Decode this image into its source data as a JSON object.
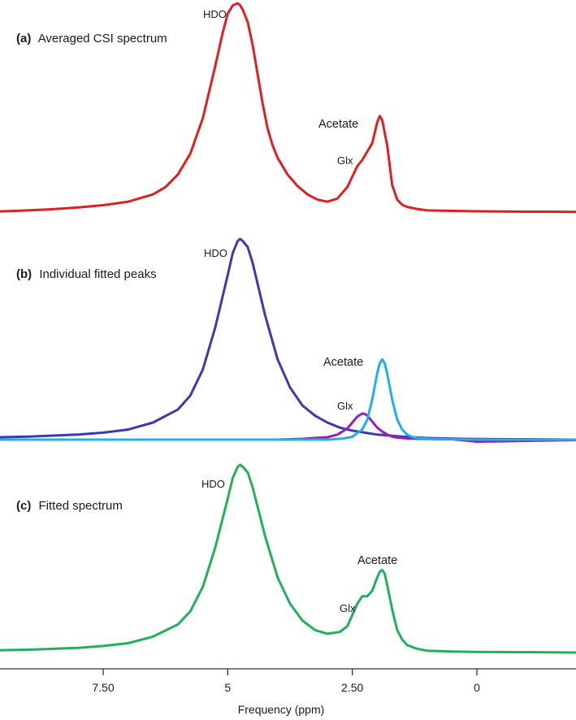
{
  "chart_data": [
    {
      "type": "line",
      "panel": "a",
      "title_letter": "(a)",
      "title_text": "Averaged CSI spectrum",
      "xlim": [
        10.0,
        -2.5
      ],
      "x_reversed": true,
      "color": "#e02020",
      "series": [
        {
          "x": [
            10.0,
            9.5,
            9.0,
            8.5,
            8.0,
            7.5,
            7.0,
            6.5,
            6.25,
            6.0,
            5.75,
            5.5,
            5.25,
            5.1,
            5.0,
            4.9,
            4.8,
            4.75,
            4.7,
            4.6,
            4.5,
            4.4,
            4.3,
            4.2,
            4.1,
            4.0,
            3.8,
            3.6,
            3.4,
            3.2,
            3.0,
            2.8,
            2.6,
            2.4,
            2.3,
            2.2,
            2.1,
            2.0,
            1.95,
            1.9,
            1.8,
            1.7,
            1.6,
            1.5,
            1.4,
            1.2,
            1.0,
            0.5,
            0.0,
            -0.5,
            -1.0,
            -1.5,
            -2.0,
            -2.5
          ],
          "y": [
            0.0,
            0.004,
            0.008,
            0.014,
            0.022,
            0.033,
            0.05,
            0.085,
            0.12,
            0.18,
            0.28,
            0.45,
            0.7,
            0.86,
            0.95,
            0.99,
            1.0,
            0.99,
            0.97,
            0.91,
            0.8,
            0.66,
            0.52,
            0.4,
            0.32,
            0.26,
            0.18,
            0.125,
            0.085,
            0.06,
            0.05,
            0.065,
            0.12,
            0.22,
            0.25,
            0.29,
            0.33,
            0.43,
            0.46,
            0.44,
            0.32,
            0.13,
            0.06,
            0.035,
            0.025,
            0.015,
            0.008,
            0.006,
            0.004,
            0.003,
            0.002,
            0.002,
            0.001,
            0.0
          ]
        }
      ],
      "annotations": [
        {
          "text": "HDO",
          "x": 5.8,
          "y": 0.97
        },
        {
          "text": "Acetate",
          "x": 2.25,
          "y": 0.46
        },
        {
          "text": "Glx",
          "x": 2.6,
          "y": 0.27
        }
      ]
    },
    {
      "type": "line",
      "panel": "b",
      "title_letter": "(b)",
      "title_text": "Individual fitted peaks",
      "xlim": [
        10.0,
        -2.5
      ],
      "x_reversed": true,
      "series": [
        {
          "color": "#3b3bb0",
          "x": [
            10.0,
            9.0,
            8.0,
            7.5,
            7.0,
            6.5,
            6.0,
            5.75,
            5.5,
            5.25,
            5.0,
            4.9,
            4.8,
            4.75,
            4.7,
            4.6,
            4.5,
            4.25,
            4.0,
            3.75,
            3.5,
            3.25,
            3.0,
            2.75,
            2.5,
            2.25,
            2.0,
            1.5,
            1.0,
            0.5,
            0.0,
            -1.0,
            -2.0,
            -2.5
          ],
          "y": [
            0.01,
            0.015,
            0.025,
            0.035,
            0.05,
            0.085,
            0.15,
            0.22,
            0.35,
            0.56,
            0.82,
            0.93,
            0.99,
            1.0,
            0.99,
            0.96,
            0.88,
            0.62,
            0.4,
            0.26,
            0.17,
            0.12,
            0.085,
            0.06,
            0.045,
            0.035,
            0.025,
            0.015,
            0.008,
            0.005,
            0.003,
            0.002,
            0.0,
            0.0
          ]
        },
        {
          "color": "#9a1fb5",
          "x": [
            10.0,
            4.0,
            3.5,
            3.0,
            2.8,
            2.6,
            2.5,
            2.4,
            2.3,
            2.25,
            2.2,
            2.1,
            2.0,
            1.9,
            1.8,
            1.7,
            1.6,
            1.4,
            1.0,
            0.5,
            0.0,
            -1.0,
            -2.5
          ],
          "y": [
            0.0,
            0.0,
            0.004,
            0.012,
            0.025,
            0.055,
            0.085,
            0.115,
            0.13,
            0.128,
            0.12,
            0.09,
            0.06,
            0.04,
            0.026,
            0.015,
            0.01,
            0.006,
            0.003,
            0.002,
            -0.01,
            -0.006,
            0.0
          ]
        },
        {
          "color": "#1eb0e6",
          "x": [
            10.0,
            3.0,
            2.7,
            2.5,
            2.3,
            2.2,
            2.1,
            2.0,
            1.95,
            1.9,
            1.85,
            1.8,
            1.7,
            1.6,
            1.5,
            1.4,
            1.3,
            1.2,
            1.0,
            0.5,
            0.0,
            -2.5
          ],
          "y": [
            0.0,
            0.0,
            0.005,
            0.014,
            0.05,
            0.1,
            0.2,
            0.33,
            0.38,
            0.4,
            0.38,
            0.33,
            0.2,
            0.1,
            0.05,
            0.025,
            0.014,
            0.008,
            0.004,
            0.002,
            0.0,
            0.0
          ]
        }
      ],
      "annotations": [
        {
          "text": "HDO",
          "x": 6.0,
          "y": 0.92
        },
        {
          "text": "Acetate",
          "x": 2.55,
          "y": 0.38
        },
        {
          "text": "Glx",
          "x": 2.65,
          "y": 0.16
        }
      ]
    },
    {
      "type": "line",
      "panel": "c",
      "title_letter": "(c)",
      "title_text": "Fitted spectrum",
      "xlim": [
        10.0,
        -2.5
      ],
      "x_reversed": true,
      "color": "#22b05a",
      "series": [
        {
          "x": [
            10.0,
            9.0,
            8.0,
            7.5,
            7.0,
            6.5,
            6.0,
            5.75,
            5.5,
            5.25,
            5.0,
            4.9,
            4.8,
            4.75,
            4.7,
            4.6,
            4.5,
            4.25,
            4.0,
            3.75,
            3.5,
            3.25,
            3.0,
            2.75,
            2.6,
            2.5,
            2.4,
            2.3,
            2.2,
            2.1,
            2.0,
            1.95,
            1.9,
            1.85,
            1.8,
            1.7,
            1.6,
            1.5,
            1.4,
            1.2,
            1.0,
            0.5,
            0.0,
            -1.0,
            -2.0,
            -2.5
          ],
          "y": [
            0.01,
            0.015,
            0.025,
            0.035,
            0.05,
            0.085,
            0.15,
            0.22,
            0.35,
            0.56,
            0.82,
            0.93,
            0.99,
            1.0,
            0.99,
            0.96,
            0.88,
            0.62,
            0.4,
            0.26,
            0.17,
            0.12,
            0.1,
            0.11,
            0.14,
            0.2,
            0.26,
            0.3,
            0.3,
            0.33,
            0.4,
            0.43,
            0.44,
            0.42,
            0.36,
            0.23,
            0.12,
            0.07,
            0.04,
            0.02,
            0.01,
            0.005,
            0.003,
            0.002,
            0.0,
            0.0
          ]
        }
      ],
      "annotations": [
        {
          "text": "HDO",
          "x": 6.0,
          "y": 0.92
        },
        {
          "text": "Acetate",
          "x": 2.35,
          "y": 0.5
        },
        {
          "text": "Glx",
          "x": 2.6,
          "y": 0.28
        }
      ]
    }
  ],
  "x_axis": {
    "title": "Frequency (ppm)",
    "ticks": [
      {
        "value": 7.5,
        "label": "7.50"
      },
      {
        "value": 5.0,
        "label": "5"
      },
      {
        "value": 2.5,
        "label": "2.50"
      },
      {
        "value": 0.0,
        "label": "0"
      }
    ]
  }
}
